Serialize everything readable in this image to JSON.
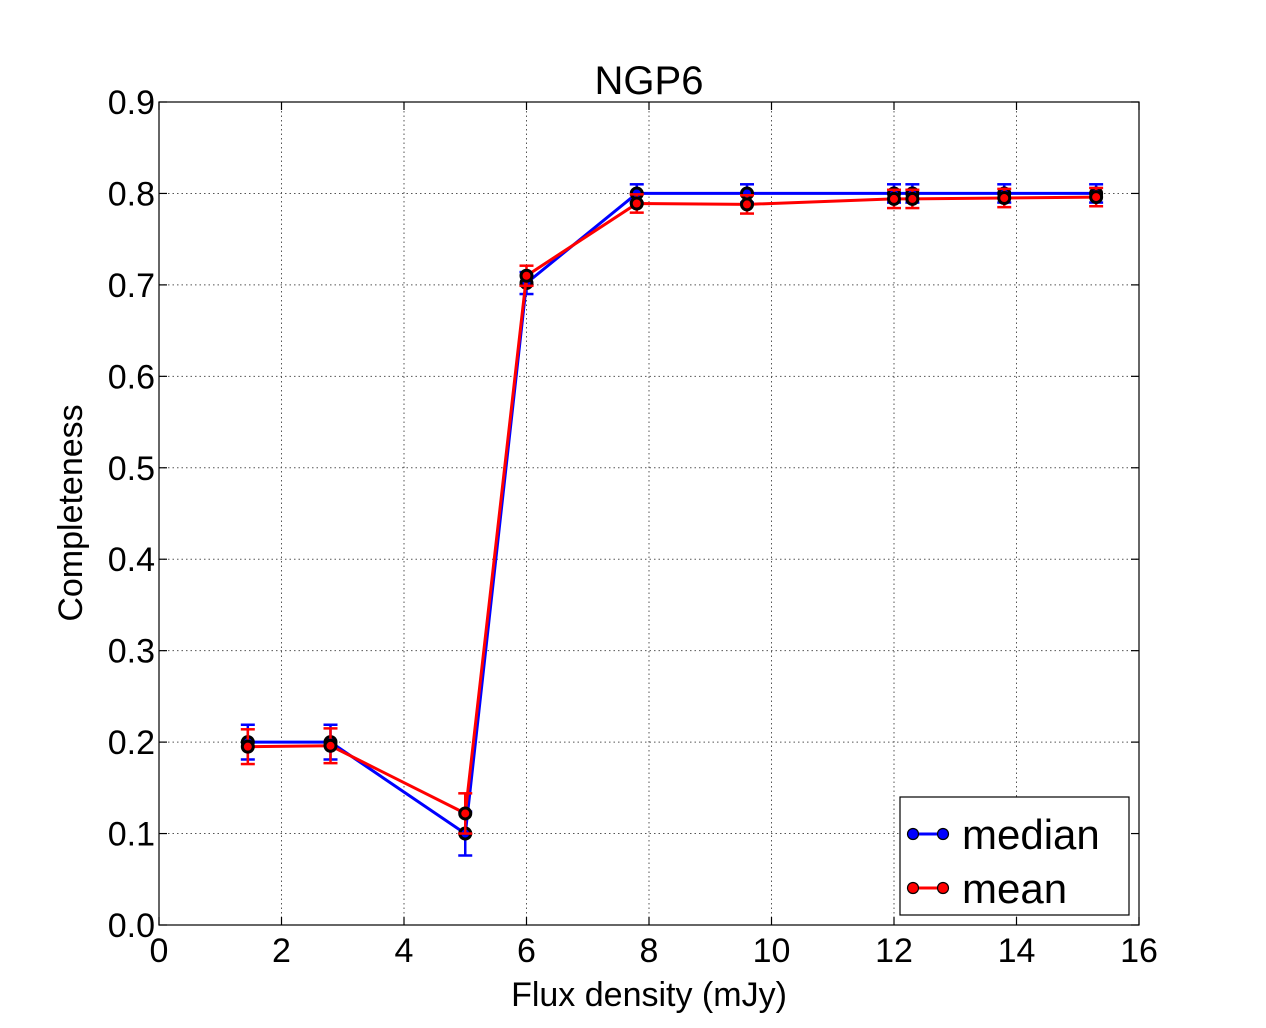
{
  "chart_data": {
    "type": "line",
    "title": "NGP6",
    "xlabel": "Flux density (mJy)",
    "ylabel": "Completeness",
    "xlim": [
      0,
      16
    ],
    "ylim": [
      0.0,
      0.9
    ],
    "xticks": [
      0,
      2,
      4,
      6,
      8,
      10,
      12,
      14,
      16
    ],
    "xtick_labels": [
      "0",
      "2",
      "4",
      "6",
      "8",
      "10",
      "12",
      "14",
      "16"
    ],
    "yticks": [
      0.0,
      0.1,
      0.2,
      0.3,
      0.4,
      0.5,
      0.6,
      0.7,
      0.8,
      0.9
    ],
    "ytick_labels": [
      "0.0",
      "0.1",
      "0.2",
      "0.3",
      "0.4",
      "0.5",
      "0.6",
      "0.7",
      "0.8",
      "0.9"
    ],
    "grid": true,
    "legend_position": "lower-right",
    "x": [
      1.45,
      2.8,
      5.0,
      6.0,
      7.8,
      9.6,
      12.0,
      12.3,
      13.8,
      15.3
    ],
    "series": [
      {
        "name": "median",
        "color": "#0000ff",
        "values": [
          0.2,
          0.2,
          0.1,
          0.702,
          0.8,
          0.8,
          0.8,
          0.8,
          0.8,
          0.8
        ],
        "errors": [
          0.019,
          0.019,
          0.024,
          0.012,
          0.01,
          0.01,
          0.01,
          0.01,
          0.01,
          0.01
        ]
      },
      {
        "name": "mean",
        "color": "#ff0000",
        "values": [
          0.195,
          0.196,
          0.122,
          0.71,
          0.789,
          0.788,
          0.794,
          0.794,
          0.795,
          0.796
        ],
        "errors": [
          0.019,
          0.019,
          0.022,
          0.011,
          0.01,
          0.01,
          0.01,
          0.01,
          0.01,
          0.01
        ]
      }
    ]
  }
}
